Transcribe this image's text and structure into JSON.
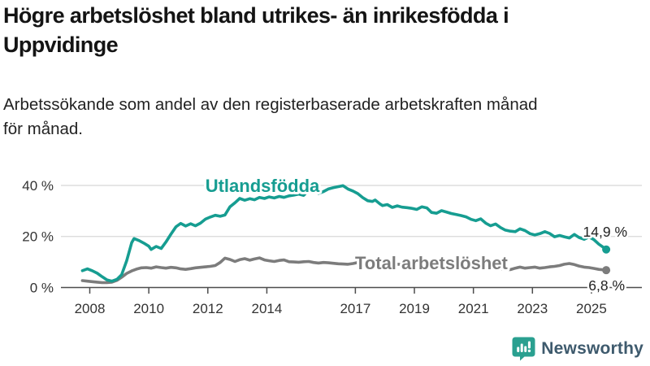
{
  "header": {
    "title": "Högre arbetslöshet bland utrikes- än inrikesfödda i\nUppvidinge",
    "subtitle": "Arbetssökande som andel av den registerbaserade arbetskraften månad\nför månad."
  },
  "chart_data": {
    "type": "line",
    "unit": "percent",
    "x_axis": {
      "tick_years": [
        2008,
        2010,
        2012,
        2014,
        2017,
        2019,
        2021,
        2023,
        2025
      ]
    },
    "y_axis": {
      "ticks": [
        0,
        20,
        40
      ],
      "suffix": " %",
      "range": [
        0,
        45
      ]
    },
    "grid": "horizontal-only",
    "legend_position": "inline-labels",
    "series": [
      {
        "name": "Utlandsfödda",
        "color": "#169d91",
        "end_label": "14,9 %",
        "points": [
          [
            2007.75,
            6.6
          ],
          [
            2007.92,
            7.3
          ],
          [
            2008.08,
            6.6
          ],
          [
            2008.25,
            5.6
          ],
          [
            2008.42,
            4.2
          ],
          [
            2008.58,
            3.0
          ],
          [
            2008.75,
            2.5
          ],
          [
            2008.92,
            3.2
          ],
          [
            2009.08,
            5.0
          ],
          [
            2009.25,
            10.5
          ],
          [
            2009.42,
            17.6
          ],
          [
            2009.5,
            19.2
          ],
          [
            2009.67,
            18.4
          ],
          [
            2009.83,
            17.4
          ],
          [
            2010.0,
            16.2
          ],
          [
            2010.08,
            14.9
          ],
          [
            2010.25,
            16.1
          ],
          [
            2010.42,
            15.3
          ],
          [
            2010.58,
            17.8
          ],
          [
            2010.75,
            20.9
          ],
          [
            2010.92,
            23.8
          ],
          [
            2011.08,
            25.1
          ],
          [
            2011.25,
            24.1
          ],
          [
            2011.42,
            25.0
          ],
          [
            2011.58,
            24.2
          ],
          [
            2011.75,
            25.2
          ],
          [
            2011.92,
            26.8
          ],
          [
            2012.08,
            27.6
          ],
          [
            2012.25,
            28.3
          ],
          [
            2012.42,
            27.9
          ],
          [
            2012.58,
            28.4
          ],
          [
            2012.75,
            31.6
          ],
          [
            2012.92,
            33.2
          ],
          [
            2013.08,
            34.9
          ],
          [
            2013.25,
            34.2
          ],
          [
            2013.42,
            34.8
          ],
          [
            2013.58,
            34.4
          ],
          [
            2013.75,
            35.3
          ],
          [
            2013.92,
            34.9
          ],
          [
            2014.08,
            35.5
          ],
          [
            2014.25,
            35.1
          ],
          [
            2014.42,
            35.7
          ],
          [
            2014.58,
            35.3
          ],
          [
            2014.75,
            35.9
          ],
          [
            2014.92,
            36.2
          ],
          [
            2015.08,
            36.6
          ],
          [
            2015.25,
            36.1
          ],
          [
            2015.42,
            38.2
          ],
          [
            2015.58,
            38.4
          ],
          [
            2015.75,
            36.9
          ],
          [
            2015.92,
            37.6
          ],
          [
            2016.08,
            38.6
          ],
          [
            2016.25,
            39.1
          ],
          [
            2016.42,
            39.5
          ],
          [
            2016.58,
            39.9
          ],
          [
            2016.75,
            38.6
          ],
          [
            2016.92,
            37.8
          ],
          [
            2017.08,
            36.8
          ],
          [
            2017.25,
            35.2
          ],
          [
            2017.42,
            34.0
          ],
          [
            2017.58,
            33.7
          ],
          [
            2017.67,
            34.3
          ],
          [
            2017.83,
            32.8
          ],
          [
            2017.92,
            32.1
          ],
          [
            2018.08,
            32.5
          ],
          [
            2018.25,
            31.4
          ],
          [
            2018.42,
            32.0
          ],
          [
            2018.58,
            31.5
          ],
          [
            2018.75,
            31.3
          ],
          [
            2018.92,
            31.0
          ],
          [
            2019.08,
            30.6
          ],
          [
            2019.25,
            31.6
          ],
          [
            2019.42,
            31.2
          ],
          [
            2019.58,
            29.4
          ],
          [
            2019.75,
            29.1
          ],
          [
            2019.92,
            30.1
          ],
          [
            2020.08,
            29.6
          ],
          [
            2020.25,
            29.0
          ],
          [
            2020.42,
            28.6
          ],
          [
            2020.58,
            28.2
          ],
          [
            2020.75,
            27.7
          ],
          [
            2020.92,
            26.7
          ],
          [
            2021.08,
            26.2
          ],
          [
            2021.25,
            26.9
          ],
          [
            2021.42,
            25.2
          ],
          [
            2021.58,
            24.2
          ],
          [
            2021.75,
            24.9
          ],
          [
            2021.92,
            23.5
          ],
          [
            2022.08,
            22.5
          ],
          [
            2022.25,
            22.1
          ],
          [
            2022.42,
            21.9
          ],
          [
            2022.58,
            23.0
          ],
          [
            2022.75,
            22.3
          ],
          [
            2022.92,
            21.1
          ],
          [
            2023.08,
            20.6
          ],
          [
            2023.25,
            21.1
          ],
          [
            2023.42,
            21.9
          ],
          [
            2023.58,
            21.2
          ],
          [
            2023.75,
            19.9
          ],
          [
            2023.92,
            20.4
          ],
          [
            2024.08,
            19.9
          ],
          [
            2024.25,
            19.4
          ],
          [
            2024.42,
            20.8
          ],
          [
            2024.58,
            19.6
          ],
          [
            2024.75,
            18.9
          ],
          [
            2024.92,
            19.8
          ],
          [
            2025.08,
            18.8
          ],
          [
            2025.25,
            17.0
          ],
          [
            2025.42,
            15.6
          ],
          [
            2025.5,
            14.9
          ]
        ]
      },
      {
        "name": "Total arbetslöshet",
        "color": "#7c7c7c",
        "end_label": "6,8 %",
        "points": [
          [
            2007.75,
            2.7
          ],
          [
            2007.92,
            2.5
          ],
          [
            2008.08,
            2.3
          ],
          [
            2008.25,
            2.1
          ],
          [
            2008.42,
            1.9
          ],
          [
            2008.58,
            1.9
          ],
          [
            2008.75,
            2.1
          ],
          [
            2008.92,
            2.8
          ],
          [
            2009.08,
            4.0
          ],
          [
            2009.25,
            5.5
          ],
          [
            2009.42,
            6.5
          ],
          [
            2009.58,
            7.2
          ],
          [
            2009.75,
            7.7
          ],
          [
            2009.92,
            7.8
          ],
          [
            2010.08,
            7.6
          ],
          [
            2010.25,
            8.1
          ],
          [
            2010.42,
            7.8
          ],
          [
            2010.58,
            7.6
          ],
          [
            2010.75,
            7.9
          ],
          [
            2010.92,
            7.7
          ],
          [
            2011.08,
            7.3
          ],
          [
            2011.25,
            7.1
          ],
          [
            2011.42,
            7.4
          ],
          [
            2011.58,
            7.7
          ],
          [
            2011.75,
            7.9
          ],
          [
            2011.92,
            8.1
          ],
          [
            2012.08,
            8.3
          ],
          [
            2012.25,
            8.6
          ],
          [
            2012.42,
            9.8
          ],
          [
            2012.58,
            11.5
          ],
          [
            2012.75,
            11.0
          ],
          [
            2012.92,
            10.2
          ],
          [
            2013.08,
            10.9
          ],
          [
            2013.25,
            11.3
          ],
          [
            2013.42,
            10.7
          ],
          [
            2013.58,
            11.2
          ],
          [
            2013.75,
            11.6
          ],
          [
            2013.92,
            10.8
          ],
          [
            2014.08,
            10.5
          ],
          [
            2014.25,
            10.2
          ],
          [
            2014.42,
            10.6
          ],
          [
            2014.58,
            10.8
          ],
          [
            2014.75,
            10.1
          ],
          [
            2014.92,
            10.0
          ],
          [
            2015.08,
            9.9
          ],
          [
            2015.25,
            10.1
          ],
          [
            2015.42,
            10.2
          ],
          [
            2015.58,
            9.8
          ],
          [
            2015.75,
            9.6
          ],
          [
            2015.92,
            9.8
          ],
          [
            2016.08,
            9.7
          ],
          [
            2016.25,
            9.5
          ],
          [
            2016.42,
            9.3
          ],
          [
            2016.58,
            9.2
          ],
          [
            2016.75,
            9.1
          ],
          [
            2016.92,
            9.4
          ],
          [
            2017.08,
            9.8
          ],
          [
            2017.25,
            10.0
          ],
          [
            2017.42,
            10.2
          ],
          [
            2017.58,
            9.9
          ],
          [
            2017.75,
            9.7
          ],
          [
            2017.92,
            9.5
          ],
          [
            2018.08,
            9.3
          ],
          [
            2018.33,
            9.2
          ],
          [
            2018.58,
            9.0
          ],
          [
            2018.83,
            8.9
          ],
          [
            2019.08,
            8.7
          ],
          [
            2019.33,
            8.6
          ],
          [
            2019.58,
            8.5
          ],
          [
            2019.83,
            8.4
          ],
          [
            2020.08,
            8.6
          ],
          [
            2020.33,
            9.2
          ],
          [
            2020.58,
            9.4
          ],
          [
            2020.83,
            9.1
          ],
          [
            2021.08,
            8.8
          ],
          [
            2021.33,
            8.4
          ],
          [
            2021.58,
            8.0
          ],
          [
            2021.83,
            7.6
          ],
          [
            2022.08,
            7.1
          ],
          [
            2022.25,
            7.0
          ],
          [
            2022.42,
            7.6
          ],
          [
            2022.58,
            8.0
          ],
          [
            2022.75,
            7.6
          ],
          [
            2022.92,
            7.8
          ],
          [
            2023.08,
            8.0
          ],
          [
            2023.25,
            7.6
          ],
          [
            2023.42,
            7.8
          ],
          [
            2023.58,
            8.1
          ],
          [
            2023.75,
            8.3
          ],
          [
            2023.92,
            8.6
          ],
          [
            2024.08,
            9.1
          ],
          [
            2024.25,
            9.4
          ],
          [
            2024.42,
            9.0
          ],
          [
            2024.58,
            8.4
          ],
          [
            2024.75,
            8.0
          ],
          [
            2024.92,
            7.8
          ],
          [
            2025.08,
            7.5
          ],
          [
            2025.25,
            7.1
          ],
          [
            2025.42,
            6.9
          ],
          [
            2025.5,
            6.8
          ]
        ]
      }
    ]
  },
  "footer": {
    "brand": "Newsworthy"
  },
  "colors": {
    "accent_teal": "#169d91",
    "series_gray": "#7c7c7c",
    "axis": "#4d4d4d",
    "grid": "#d8d8d8",
    "title_text": "#141414",
    "brand_text": "#3e5a6d",
    "logo_bubble": "#2aa090"
  }
}
